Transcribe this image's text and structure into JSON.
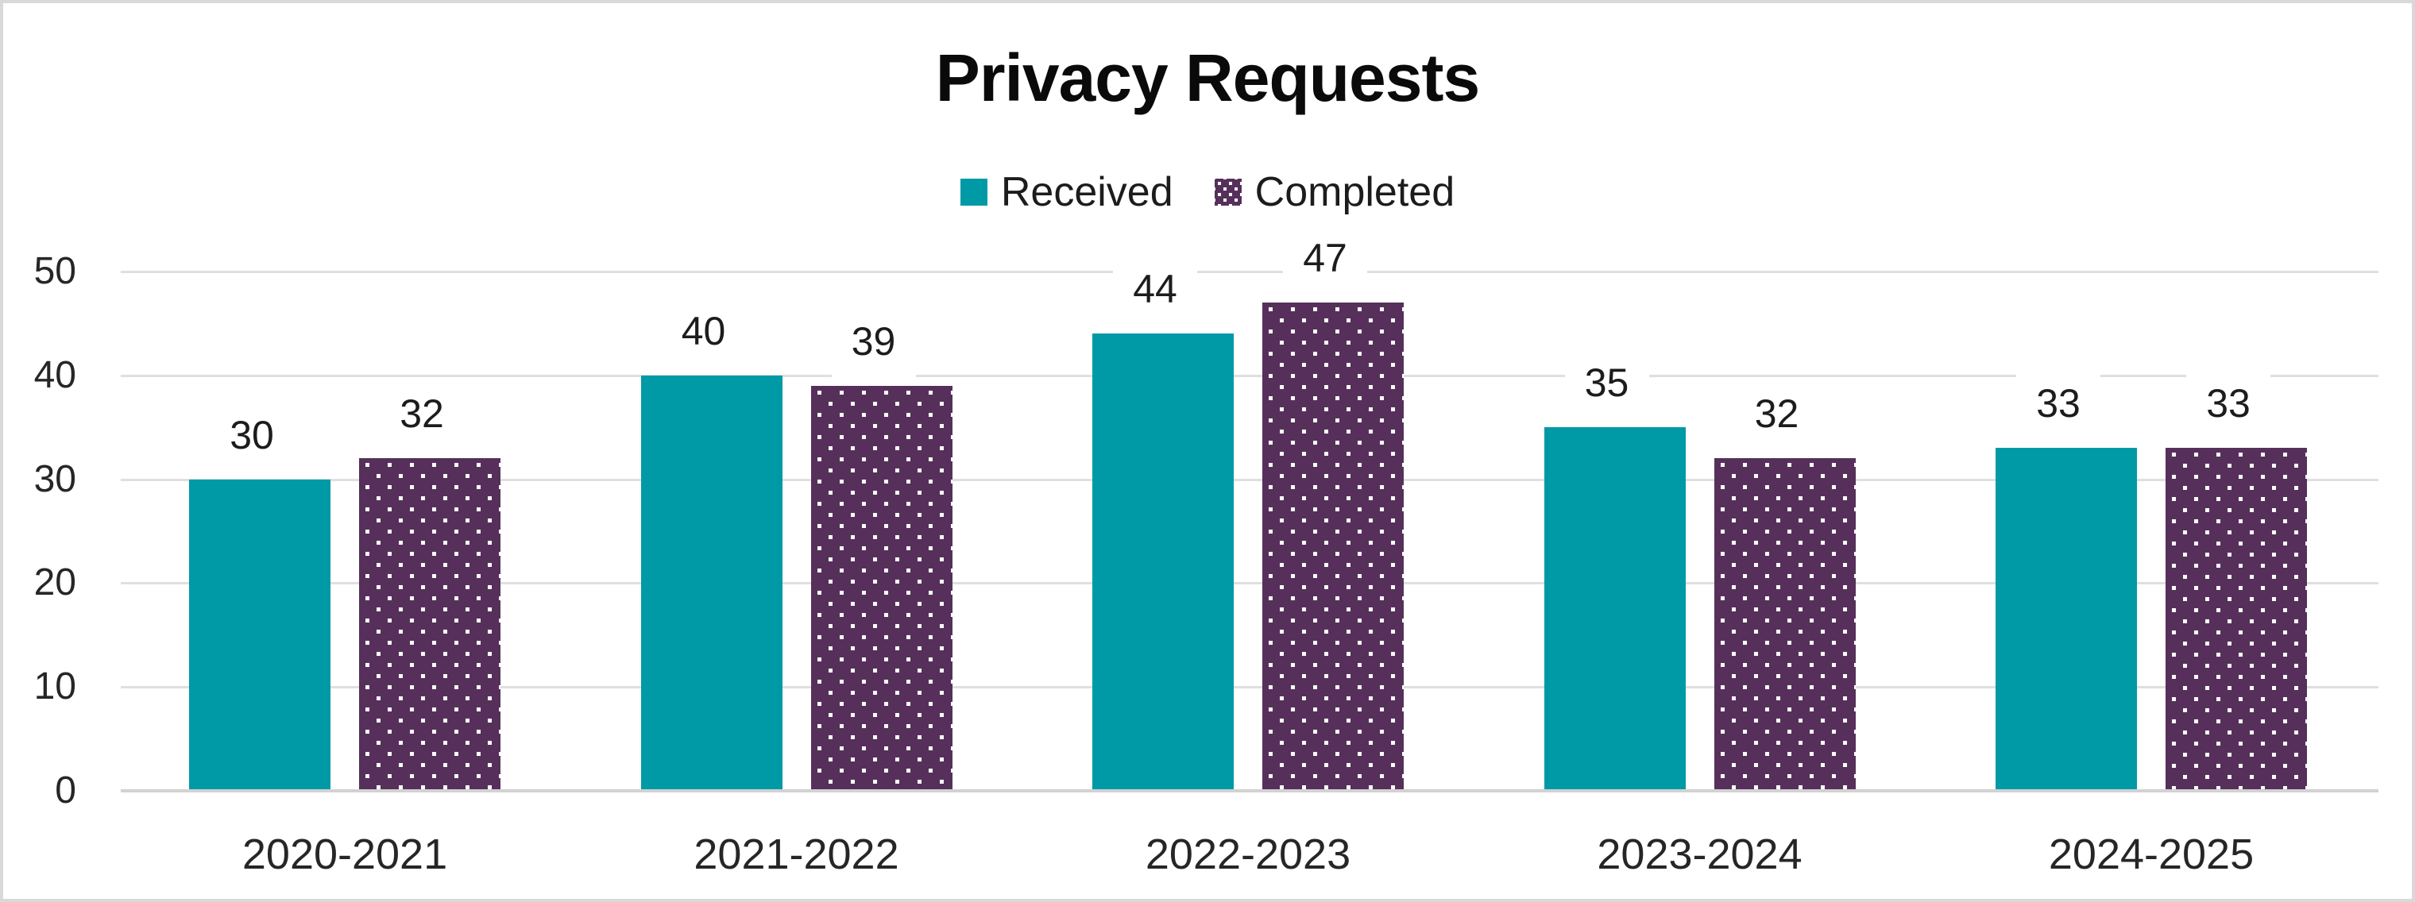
{
  "title": "Privacy Requests",
  "legend": {
    "items": [
      {
        "label": "Received",
        "swatch": "solid-teal"
      },
      {
        "label": "Completed",
        "swatch": "dotted-purple"
      }
    ]
  },
  "colors": {
    "received": "#0099A6",
    "completed": "#56305A",
    "completed_dot": "#FFFFFF",
    "gridline": "#DFDFDF",
    "axis_line": "#D2D2D2",
    "frame_border": "#D9D9D9",
    "text": "#1C1C1C"
  },
  "chart_data": {
    "type": "bar",
    "title": "Privacy Requests",
    "categories": [
      "2020-2021",
      "2021-2022",
      "2022-2023",
      "2023-2024",
      "2024-2025"
    ],
    "series": [
      {
        "name": "Received",
        "values": [
          30,
          40,
          44,
          35,
          33
        ]
      },
      {
        "name": "Completed",
        "values": [
          32,
          39,
          47,
          32,
          33
        ]
      }
    ],
    "xlabel": "",
    "ylabel": "",
    "ylim": [
      0,
      50
    ],
    "yticks": [
      0,
      10,
      20,
      30,
      40,
      50
    ],
    "grid": true,
    "legend_position": "top-center",
    "data_labels": true
  }
}
